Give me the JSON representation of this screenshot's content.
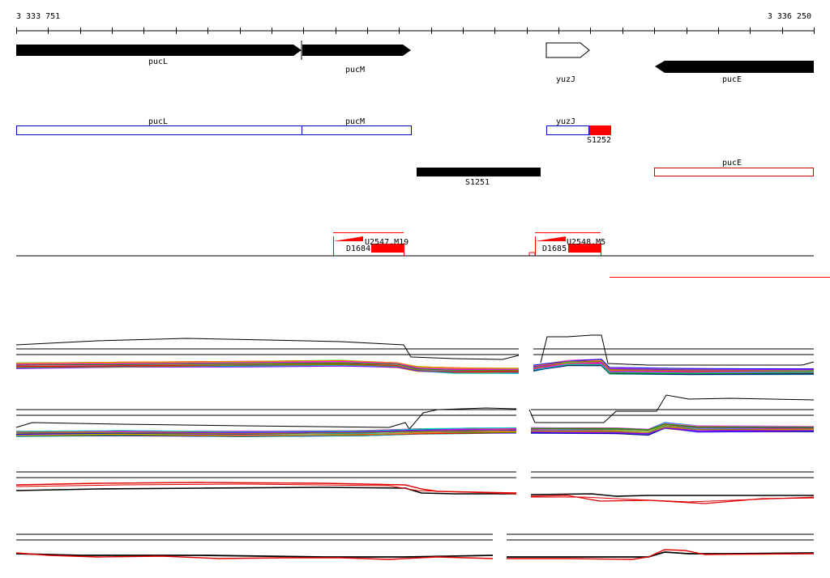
{
  "ruler": {
    "start_label": "3 333 751",
    "end_label": "3 336 250"
  },
  "genes": [
    {
      "name": "pucL",
      "strand": "+"
    },
    {
      "name": "pucM",
      "strand": "+"
    },
    {
      "name": "yuzJ",
      "strand": "+"
    },
    {
      "name": "pucE",
      "strand": "-"
    }
  ],
  "transcripts": [
    {
      "name": "pucL"
    },
    {
      "name": "pucM"
    },
    {
      "name": "yuzJ"
    },
    {
      "name": "S1252"
    },
    {
      "name": "S1251"
    },
    {
      "name": "pucE"
    }
  ],
  "features": [
    {
      "name": "U2547.M19",
      "marker": "D1684"
    },
    {
      "name": "U2548.M5",
      "marker": "D1685"
    }
  ],
  "colors": {
    "gene_fill": "#000000",
    "transcript_outline_blue": "#0000cc",
    "transcript_outline_red": "#cc0000",
    "highlight_red": "#ff0000"
  }
}
